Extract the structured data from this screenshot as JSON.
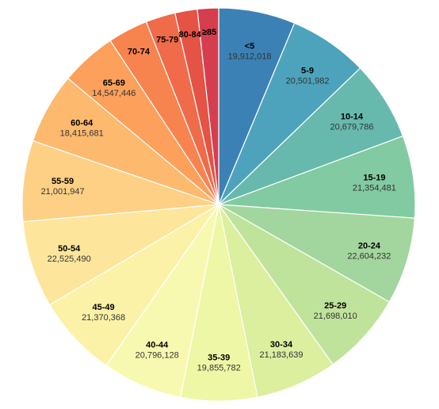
{
  "chart_data": {
    "type": "pie",
    "title": "",
    "legend": "none",
    "slices": [
      {
        "label": "<5",
        "value_label": "19,912,018",
        "value": 19912018,
        "color": "#3b81b5"
      },
      {
        "label": "5-9",
        "value_label": "20,501,982",
        "value": 20501982,
        "color": "#4ea3bc"
      },
      {
        "label": "10-14",
        "value_label": "20,679,786",
        "value": 20679786,
        "color": "#67b9ad"
      },
      {
        "label": "15-19",
        "value_label": "21,354,481",
        "value": 21354481,
        "color": "#82caa1"
      },
      {
        "label": "20-24",
        "value_label": "22,604,232",
        "value": 22604232,
        "color": "#a2d69e"
      },
      {
        "label": "25-29",
        "value_label": "21,698,010",
        "value": 21698010,
        "color": "#c0e39c"
      },
      {
        "label": "30-34",
        "value_label": "21,183,639",
        "value": 21183639,
        "color": "#dbef9f"
      },
      {
        "label": "35-39",
        "value_label": "19,855,782",
        "value": 19855782,
        "color": "#eef7a5"
      },
      {
        "label": "40-44",
        "value_label": "20,796,128",
        "value": 20796128,
        "color": "#f8f9b0"
      },
      {
        "label": "45-49",
        "value_label": "21,370,368",
        "value": 21370368,
        "color": "#fbf2a8"
      },
      {
        "label": "50-54",
        "value_label": "22,525,490",
        "value": 22525490,
        "color": "#fde69b"
      },
      {
        "label": "55-59",
        "value_label": "21,001,947",
        "value": 21001947,
        "color": "#fdd085"
      },
      {
        "label": "60-64",
        "value_label": "18,415,681",
        "value": 18415681,
        "color": "#fdb96e"
      },
      {
        "label": "65-69",
        "value_label": "14,547,446",
        "value": 14547446,
        "color": "#fca05c"
      },
      {
        "label": "70-74",
        "value_label": "",
        "value": 10400000,
        "color": "#f7834f"
      },
      {
        "label": "75-79",
        "value_label": "",
        "value": 7700000,
        "color": "#ef6b4a"
      },
      {
        "label": "80-84",
        "value_label": "",
        "value": 5800000,
        "color": "#e45345"
      },
      {
        "label": "≥85",
        "value_label": "",
        "value": 5500000,
        "color": "#d53e4f"
      }
    ]
  }
}
